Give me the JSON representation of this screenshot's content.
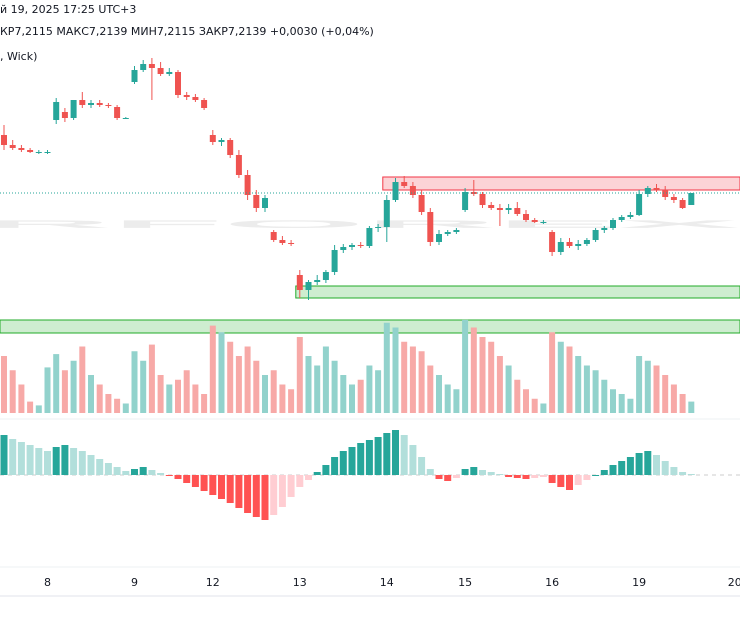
{
  "chart_data": {
    "type": "candlestick",
    "title": "й 19, 2025 17:25 UTC+3",
    "subtitle": "КР7,2115 МАКС7,2139 МИН7,2115 ЗАКР7,2139 +0,0030 (+0,04%)",
    "note": ", Wick)",
    "watermark": "RFOREX",
    "up_color": "#26a69a",
    "down_color": "#ef5350",
    "ylim": [
      7.1845,
      7.2485
    ],
    "categories": [
      null,
      null,
      null,
      null,
      null,
      "8",
      null,
      null,
      null,
      null,
      null,
      null,
      null,
      null,
      null,
      "9",
      null,
      null,
      null,
      null,
      null,
      null,
      null,
      null,
      "12",
      null,
      null,
      null,
      null,
      null,
      null,
      null,
      null,
      null,
      "13",
      null,
      null,
      null,
      null,
      null,
      null,
      null,
      null,
      null,
      "14",
      null,
      null,
      null,
      null,
      null,
      null,
      null,
      null,
      "15",
      null,
      null,
      null,
      null,
      null,
      null,
      null,
      null,
      null,
      "16",
      null,
      null,
      null,
      null,
      null,
      null,
      null,
      null,
      null,
      "19",
      null,
      null,
      null,
      null,
      null,
      null,
      null,
      null,
      null,
      null,
      "20"
    ],
    "values": [
      [
        7.2255,
        7.2275,
        7.2225,
        7.2235
      ],
      [
        7.2235,
        7.2245,
        7.2225,
        7.2229
      ],
      [
        7.2229,
        7.2235,
        7.2221,
        7.2225
      ],
      [
        7.2225,
        7.2229,
        7.2219,
        7.2221
      ],
      [
        7.2221,
        7.2225,
        7.2217,
        7.2221
      ],
      [
        7.2221,
        7.2225,
        7.2217,
        7.2221
      ],
      [
        7.2285,
        7.2329,
        7.2277,
        7.2321
      ],
      [
        7.2301,
        7.2309,
        7.2281,
        7.2289
      ],
      [
        7.2289,
        7.2325,
        7.2285,
        7.2325
      ],
      [
        7.2325,
        7.2341,
        7.2309,
        7.2315
      ],
      [
        7.2315,
        7.2325,
        7.2309,
        7.2319
      ],
      [
        7.2319,
        7.2325,
        7.2311,
        7.2315
      ],
      [
        7.2315,
        7.2319,
        7.2309,
        7.2313
      ],
      [
        7.2311,
        7.2315,
        7.2285,
        7.2289
      ],
      [
        7.2289,
        7.2291,
        7.2287,
        7.2289
      ],
      [
        7.2361,
        7.2393,
        7.2357,
        7.2385
      ],
      [
        7.2385,
        7.2405,
        7.2381,
        7.2397
      ],
      [
        7.2397,
        7.2409,
        7.2325,
        7.2389
      ],
      [
        7.2389,
        7.2401,
        7.2373,
        7.2377
      ],
      [
        7.2377,
        7.2389,
        7.2373,
        7.2381
      ],
      [
        7.2381,
        7.2385,
        7.2329,
        7.2335
      ],
      [
        7.2335,
        7.2341,
        7.2325,
        7.2331
      ],
      [
        7.2331,
        7.2337,
        7.2321,
        7.2325
      ],
      [
        7.2325,
        7.2329,
        7.2305,
        7.2309
      ],
      [
        7.2255,
        7.2265,
        7.2235,
        7.2241
      ],
      [
        7.2241,
        7.2249,
        7.2233,
        7.2245
      ],
      [
        7.2245,
        7.2249,
        7.2209,
        7.2215
      ],
      [
        7.2215,
        7.2225,
        7.2169,
        7.2175
      ],
      [
        7.2175,
        7.2185,
        7.2125,
        7.2135
      ],
      [
        7.2135,
        7.2145,
        7.2101,
        7.2109
      ],
      [
        7.2109,
        7.2135,
        7.2101,
        7.2129
      ],
      [
        7.2061,
        7.2065,
        7.2041,
        7.2045
      ],
      [
        7.2045,
        7.2053,
        7.2035,
        7.2039
      ],
      [
        7.2039,
        7.2045,
        7.2033,
        7.2037
      ],
      [
        7.1975,
        7.1985,
        7.1929,
        7.1945
      ],
      [
        7.1945,
        7.1965,
        7.1925,
        7.1961
      ],
      [
        7.1961,
        7.1975,
        7.1955,
        7.1965
      ],
      [
        7.1965,
        7.1985,
        7.1959,
        7.1981
      ],
      [
        7.1981,
        7.2035,
        7.1975,
        7.2025
      ],
      [
        7.2025,
        7.2037,
        7.2019,
        7.2031
      ],
      [
        7.2031,
        7.2039,
        7.2025,
        7.2035
      ],
      [
        7.2035,
        7.2041,
        7.2029,
        7.2033
      ],
      [
        7.2033,
        7.2073,
        7.2029,
        7.2069
      ],
      [
        7.2069,
        7.2077,
        7.2061,
        7.2071
      ],
      [
        7.2071,
        7.2135,
        7.2041,
        7.2125
      ],
      [
        7.2125,
        7.2169,
        7.2121,
        7.2161
      ],
      [
        7.2161,
        7.2173,
        7.2149,
        7.2153
      ],
      [
        7.2153,
        7.2161,
        7.2129,
        7.2135
      ],
      [
        7.2135,
        7.2145,
        7.2095,
        7.2101
      ],
      [
        7.2101,
        7.2109,
        7.2033,
        7.2041
      ],
      [
        7.2041,
        7.2065,
        7.2035,
        7.2057
      ],
      [
        7.2057,
        7.2065,
        7.2053,
        7.2061
      ],
      [
        7.2061,
        7.2069,
        7.2057,
        7.2065
      ],
      [
        7.2105,
        7.2149,
        7.2101,
        7.2141
      ],
      [
        7.2141,
        7.2165,
        7.2133,
        7.2137
      ],
      [
        7.2137,
        7.2141,
        7.2109,
        7.2115
      ],
      [
        7.2115,
        7.2121,
        7.2105,
        7.2109
      ],
      [
        7.2109,
        7.2117,
        7.2073,
        7.2105
      ],
      [
        7.2105,
        7.2117,
        7.2097,
        7.2109
      ],
      [
        7.2109,
        7.2121,
        7.2093,
        7.2097
      ],
      [
        7.2097,
        7.2105,
        7.2081,
        7.2085
      ],
      [
        7.2085,
        7.2089,
        7.2079,
        7.2081
      ],
      [
        7.2081,
        7.2085,
        7.2077,
        7.2081
      ],
      [
        7.2061,
        7.2065,
        7.2013,
        7.2021
      ],
      [
        7.2021,
        7.2049,
        7.2015,
        7.2041
      ],
      [
        7.2041,
        7.2049,
        7.2029,
        7.2033
      ],
      [
        7.2033,
        7.2045,
        7.2025,
        7.2037
      ],
      [
        7.2037,
        7.2049,
        7.2033,
        7.2045
      ],
      [
        7.2045,
        7.2069,
        7.2041,
        7.2065
      ],
      [
        7.2065,
        7.2073,
        7.2059,
        7.2069
      ],
      [
        7.2069,
        7.2089,
        7.2065,
        7.2085
      ],
      [
        7.2085,
        7.2095,
        7.2081,
        7.2091
      ],
      [
        7.2091,
        7.2101,
        7.2087,
        7.2095
      ],
      [
        7.2095,
        7.2145,
        7.2093,
        7.2137
      ],
      [
        7.2137,
        7.2153,
        7.2131,
        7.2149
      ],
      [
        7.2149,
        7.2157,
        7.2141,
        7.2145
      ],
      [
        7.2145,
        7.2153,
        7.2125,
        7.2131
      ],
      [
        7.2131,
        7.2137,
        7.2119,
        7.2125
      ],
      [
        7.2125,
        7.2129,
        7.2107,
        7.2109
      ],
      [
        7.2115,
        7.2139,
        7.2115,
        7.2139
      ],
      null,
      null,
      null,
      null,
      null
    ],
    "zones": [
      {
        "low": 7.2145,
        "high": 7.2171,
        "start": 44,
        "color": "#f23645"
      },
      {
        "low": 7.1929,
        "high": 7.1953,
        "start": 34,
        "color": "#22ab28"
      },
      {
        "low": 7.1859,
        "high": 7.1885,
        "start": 0,
        "color": "#22ab28"
      }
    ],
    "volume": {
      "ylim": [
        0,
        100
      ],
      "up_color": "#92d2cc",
      "down_color": "#f7a9a7",
      "values": [
        60,
        45,
        30,
        12,
        8,
        48,
        62,
        45,
        55,
        70,
        40,
        30,
        20,
        15,
        10,
        65,
        55,
        72,
        40,
        30,
        35,
        45,
        30,
        20,
        92,
        85,
        75,
        60,
        70,
        55,
        40,
        45,
        30,
        25,
        80,
        60,
        50,
        70,
        55,
        40,
        30,
        35,
        50,
        45,
        95,
        90,
        75,
        70,
        65,
        50,
        40,
        30,
        25,
        98,
        90,
        80,
        75,
        60,
        50,
        35,
        25,
        15,
        10,
        85,
        75,
        70,
        60,
        50,
        45,
        35,
        25,
        20,
        15,
        60,
        55,
        50,
        40,
        30,
        20,
        12,
        null,
        null,
        null,
        null,
        null
      ]
    },
    "oscillator": {
      "ylim": [
        -55,
        55
      ],
      "colors": [
        "#26a69a",
        "#b2dfdb",
        "#ff5252",
        "#ffcdd2"
      ],
      "values": [
        40,
        36,
        33,
        30,
        27,
        24,
        28,
        30,
        27,
        24,
        20,
        16,
        12,
        8,
        4,
        6,
        8,
        5,
        2,
        -1,
        -4,
        -8,
        -12,
        -16,
        -20,
        -24,
        -28,
        -33,
        -38,
        -42,
        -45,
        -40,
        -32,
        -22,
        -12,
        -5,
        3,
        10,
        18,
        24,
        28,
        32,
        35,
        38,
        42,
        45,
        40,
        30,
        18,
        6,
        -4,
        -6,
        -3,
        6,
        8,
        5,
        3,
        1,
        -2,
        -3,
        -4,
        -3,
        -2,
        -8,
        -12,
        -15,
        -10,
        -5,
        0,
        5,
        10,
        14,
        18,
        22,
        24,
        20,
        14,
        8,
        3,
        1,
        null,
        null,
        null,
        null,
        null
      ]
    }
  }
}
